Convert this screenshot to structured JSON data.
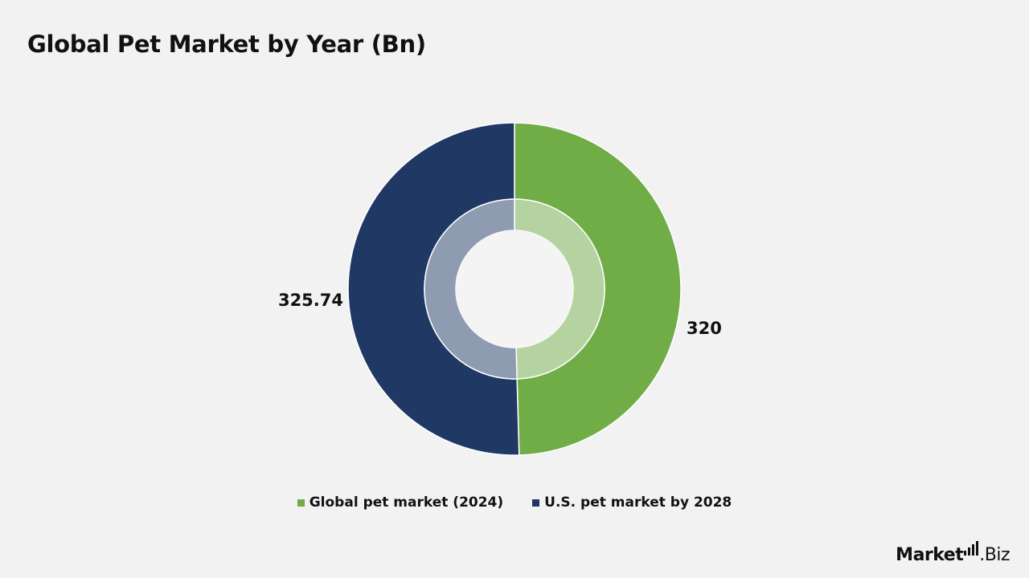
{
  "title": "Global Pet Market by Year (Bn)",
  "chart_data": {
    "type": "pie",
    "variant": "donut",
    "title": "Global Pet Market by Year (Bn)",
    "categories": [
      "Global pet market (2024)",
      "U.S. pet market by 2028"
    ],
    "values": [
      320,
      325.74
    ],
    "data_labels": [
      "320",
      "325.74"
    ],
    "colors": [
      "#70ad47",
      "#1f3864"
    ],
    "inner_ring_colors": [
      "#b5d3a0",
      "#8f9bb0"
    ],
    "legend_position": "bottom"
  },
  "legend": [
    {
      "label": "Global pet market (2024)",
      "color": "#70ad47"
    },
    {
      "label": "U.S. pet market by 2028",
      "color": "#1f3864"
    }
  ],
  "logo": {
    "text_main": "Market",
    "text_tld": ".Biz"
  }
}
